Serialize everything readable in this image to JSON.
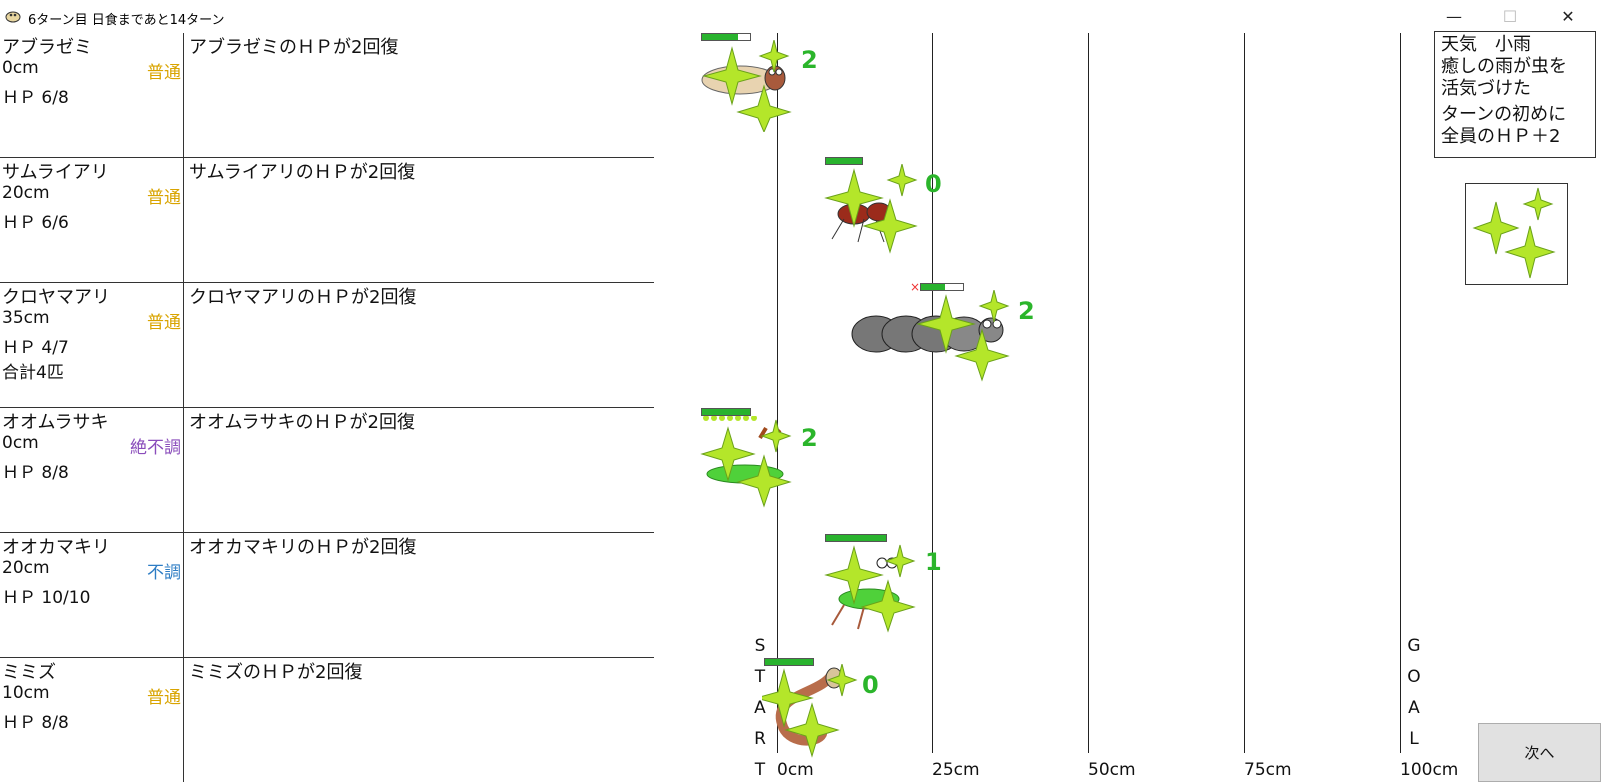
{
  "window": {
    "title": "6ターン目 日食まであと14ターン",
    "min_icon": "minimize-icon",
    "max_icon": "maximize-icon",
    "close_icon": "close-icon"
  },
  "insects": [
    {
      "name": "アブラゼミ",
      "distance": "0cm",
      "condition": "普通",
      "condition_color": "#d9a400",
      "hp": "ＨＰ 6/8",
      "extra": "",
      "log": "アブラゼミのＨＰが2回復",
      "count": "2",
      "hp_fraction": 0.75
    },
    {
      "name": "サムライアリ",
      "distance": "20cm",
      "condition": "普通",
      "condition_color": "#d9a400",
      "hp": "ＨＰ 6/6",
      "extra": "",
      "log": "サムライアリのＨＰが2回復",
      "count": "0",
      "hp_fraction": 1.0
    },
    {
      "name": "クロヤマアリ",
      "distance": "35cm",
      "condition": "普通",
      "condition_color": "#d9a400",
      "hp": "ＨＰ 4/7",
      "extra": "合計4匹",
      "log": "クロヤマアリのＨＰが2回復",
      "count": "2",
      "hp_fraction": 0.57
    },
    {
      "name": "オオムラサキ",
      "distance": "0cm",
      "condition": "絶不調",
      "condition_color": "#8a4dbb",
      "hp": "ＨＰ 8/8",
      "extra": "",
      "log": "オオムラサキのＨＰが2回復",
      "count": "2",
      "hp_fraction": 1.0
    },
    {
      "name": "オオカマキリ",
      "distance": "20cm",
      "condition": "不調",
      "condition_color": "#2e7dc4",
      "hp": "ＨＰ 10/10",
      "extra": "",
      "log": "オオカマキリのＨＰが2回復",
      "count": "1",
      "hp_fraction": 1.0
    },
    {
      "name": "ミミズ",
      "distance": "10cm",
      "condition": "普通",
      "condition_color": "#d9a400",
      "hp": "ＨＰ 8/8",
      "extra": "",
      "log": "ミミズのＨＰが2回復",
      "count": "0",
      "hp_fraction": 1.0
    }
  ],
  "track": {
    "ticks": [
      "0cm",
      "25cm",
      "50cm",
      "75cm",
      "100cm"
    ],
    "start_letters": [
      "S",
      "T",
      "A",
      "R",
      "T"
    ],
    "goal_letters": [
      "G",
      "O",
      "A",
      "L"
    ],
    "x_mark": "×"
  },
  "weather": {
    "line1": "天気　小雨",
    "line2": "癒しの雨が虫を",
    "line3": "活気づけた",
    "line4": "ターンの初めに",
    "line5": "全員のＨＰ＋2",
    "icon": "sparkle-icon"
  },
  "next_button": "次へ",
  "colors": {
    "sparkle": "#b4e62a",
    "sparkle_stroke": "#6aa11a",
    "hp_green": "#29b32e",
    "count_green": "#2bb52b"
  }
}
